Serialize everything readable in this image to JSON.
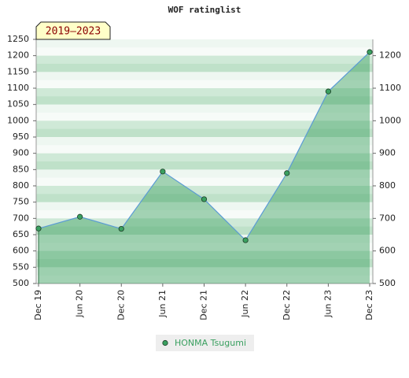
{
  "chart_data": {
    "type": "line",
    "title": "WOF ratinglist",
    "annotation": "2019–2023",
    "categories": [
      "Dec 19",
      "Jun 20",
      "Dec 20",
      "Jun 21",
      "Dec 21",
      "Jun 22",
      "Dec 22",
      "Jun 23",
      "Dec 23"
    ],
    "series": [
      {
        "name": "HONMA Tsugumi",
        "color": "#3aa060",
        "values": [
          669,
          705,
          668,
          844,
          759,
          633,
          839,
          1090,
          1211
        ]
      }
    ],
    "ylim": [
      500,
      1250
    ],
    "yticks": [
      500,
      550,
      600,
      650,
      700,
      750,
      800,
      850,
      900,
      950,
      1000,
      1050,
      1100,
      1150,
      1200,
      1250
    ],
    "y2lim": [
      500,
      1250
    ],
    "y2ticks": [
      500,
      600,
      700,
      800,
      900,
      1000,
      1100,
      1200
    ],
    "grid": false,
    "legend": "bottom"
  }
}
